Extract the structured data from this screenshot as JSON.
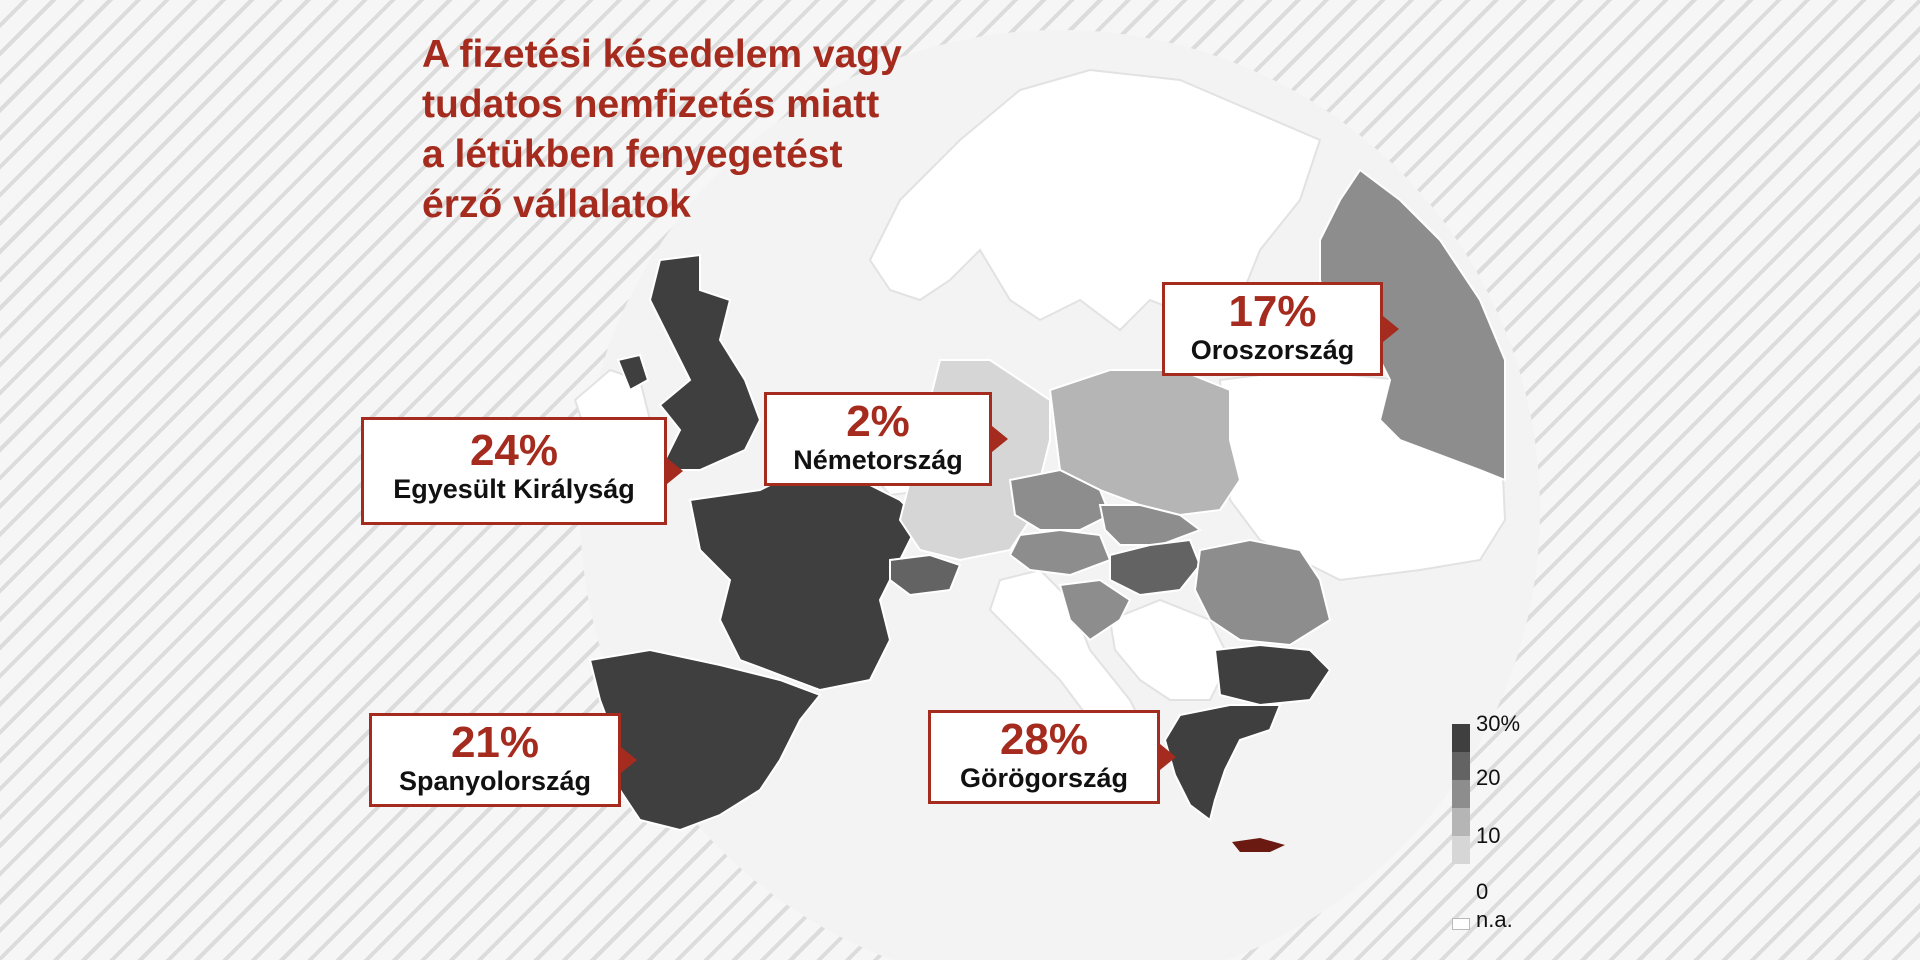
{
  "title": {
    "lines": [
      "A fizetési késedelem vagy",
      "tudatos nemfizetés miatt",
      "a létükben fenyegetést",
      "érző vállalatok"
    ]
  },
  "colors": {
    "accent": "#a42b1d",
    "shade_30": "#3f3f3f",
    "shade_20": "#636363",
    "shade_10": "#8d8d8d",
    "shade_5": "#b5b5b5",
    "shade_0": "#d6d6d6",
    "no_data": "#ffffff"
  },
  "callouts": [
    {
      "id": "uk",
      "value": "24%",
      "label": "Egyesült Királyság"
    },
    {
      "id": "de",
      "value": "2%",
      "label": "Németország"
    },
    {
      "id": "ru",
      "value": "17%",
      "label": "Oroszország"
    },
    {
      "id": "es",
      "value": "21%",
      "label": "Spanyolország"
    },
    {
      "id": "gr",
      "value": "28%",
      "label": "Görögország"
    }
  ],
  "legend": {
    "labels": [
      "30%",
      "20",
      "10",
      "0",
      "n.a."
    ]
  },
  "regions": [
    {
      "name": "Egyesült Királyság",
      "value": 24
    },
    {
      "name": "Franciaország",
      "value": 24
    },
    {
      "name": "Spanyolország",
      "value": 21
    },
    {
      "name": "Németország",
      "value": 2
    },
    {
      "name": "Lengyelország",
      "value": 8
    },
    {
      "name": "Csehország",
      "value": 12
    },
    {
      "name": "Szlovákia",
      "value": 12
    },
    {
      "name": "Ausztria",
      "value": 12
    },
    {
      "name": "Magyarország",
      "value": 16
    },
    {
      "name": "Románia",
      "value": 17
    },
    {
      "name": "Bulgária",
      "value": 28
    },
    {
      "name": "Görögország",
      "value": 28
    },
    {
      "name": "Oroszország",
      "value": 17
    },
    {
      "name": "Svájc",
      "value": 16
    },
    {
      "name": "Szlovénia",
      "value": 12
    },
    {
      "name": "Horvátország",
      "value": 12
    }
  ]
}
